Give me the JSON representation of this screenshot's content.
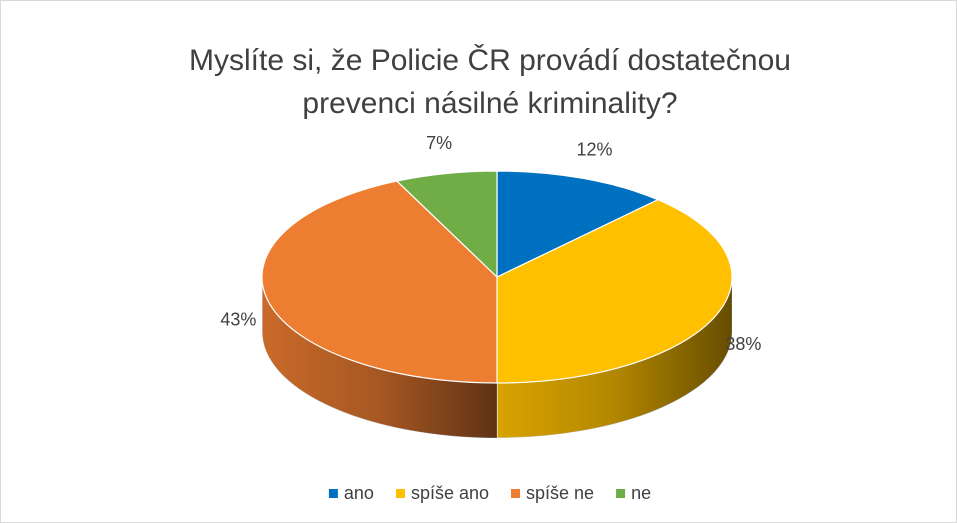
{
  "chart_data": {
    "type": "pie3d",
    "title": "Myslíte si, že Policie ČR provádí dostatečnou prevenci násilné kriminality?",
    "categories": [
      "ano",
      "spíše ano",
      "spíše ne",
      "ne"
    ],
    "values": [
      12,
      38,
      43,
      7
    ],
    "value_labels": [
      "12%",
      "38%",
      "43%",
      "7%"
    ],
    "colors": [
      "#0070c0",
      "#ffc000",
      "#ed7d31",
      "#70ad47"
    ],
    "legend": "bottom"
  }
}
